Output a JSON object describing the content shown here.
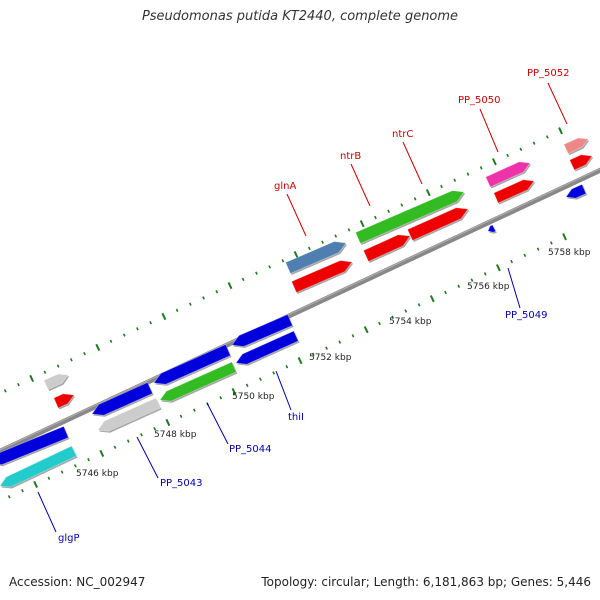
{
  "title": "Pseudomonas putida KT2440, complete genome",
  "footer": {
    "accession": "Accession: NC_002947",
    "summary": "Topology: circular; Length: 6,181,863 bp; Genes: 5,446"
  },
  "colors": {
    "background": "#ffffff",
    "backbone": "#888888",
    "ticks": "#1f7a1f",
    "tick_label": "#222222",
    "label_forward": "#cc0000",
    "label_reverse": "#0000aa",
    "blue": "#0000dd",
    "red": "#ee0000",
    "green": "#33bb22",
    "grey": "#cccccc",
    "cyan": "#22cccc",
    "steel": "#4f7fb0",
    "magenta": "#ee33aa",
    "pink": "#ee8888"
  },
  "ticks": [
    {
      "label": "5746 kbp",
      "kbp": 5746
    },
    {
      "label": "5748 kbp",
      "kbp": 5748
    },
    {
      "label": "5750 kbp",
      "kbp": 5750
    },
    {
      "label": "5752 kbp",
      "kbp": 5752
    },
    {
      "label": "5754 kbp",
      "kbp": 5754
    },
    {
      "label": "5756 kbp",
      "kbp": 5756
    },
    {
      "label": "5758 kbp",
      "kbp": 5758
    }
  ],
  "labels": [
    {
      "name": "glgP",
      "strand": "reverse"
    },
    {
      "name": "PP_5043",
      "strand": "reverse"
    },
    {
      "name": "PP_5044",
      "strand": "reverse"
    },
    {
      "name": "thiI",
      "strand": "reverse"
    },
    {
      "name": "glnA",
      "strand": "forward"
    },
    {
      "name": "ntrB",
      "strand": "forward"
    },
    {
      "name": "ntrC",
      "strand": "forward"
    },
    {
      "name": "PP_5049",
      "strand": "reverse"
    },
    {
      "name": "PP_5050",
      "strand": "forward"
    },
    {
      "name": "PP_5052",
      "strand": "forward"
    }
  ]
}
